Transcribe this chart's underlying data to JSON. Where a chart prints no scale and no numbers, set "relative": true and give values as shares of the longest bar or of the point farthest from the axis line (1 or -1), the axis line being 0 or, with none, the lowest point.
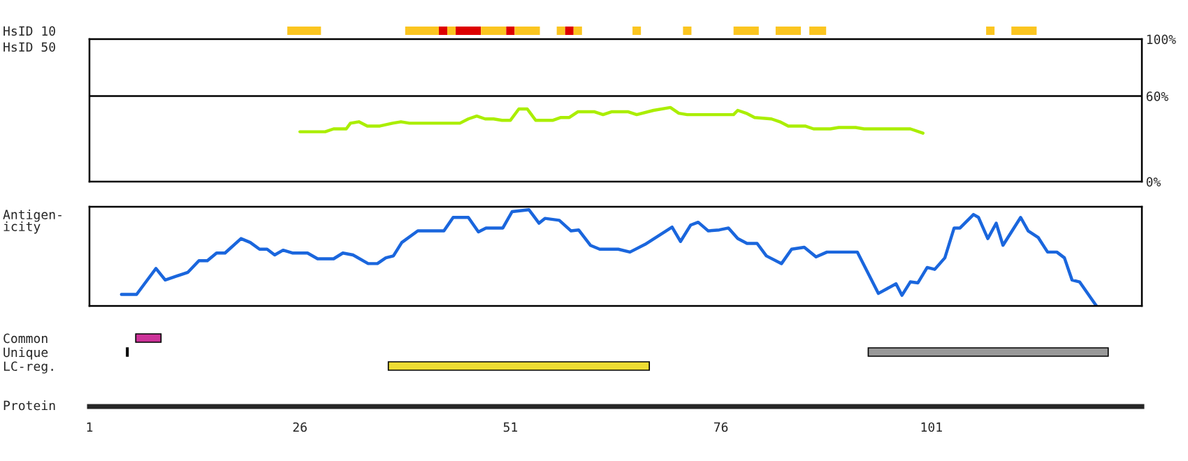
{
  "chart_data": [
    {
      "type": "bar",
      "orientation": "horizontal",
      "categories": [
        "HsID 10"
      ],
      "xlim": [
        1,
        126
      ],
      "tick_labels": "y",
      "series": [
        {
          "color": "#fbc520",
          "base": [
            24.5
          ],
          "values": [
            4
          ]
        },
        {
          "color": "#fbc520",
          "base": [
            38.5
          ],
          "values": [
            4
          ]
        },
        {
          "color": "#dd0000",
          "base": [
            42.5
          ],
          "values": [
            1
          ]
        },
        {
          "color": "#fbc520",
          "base": [
            43.5
          ],
          "values": [
            1
          ]
        },
        {
          "color": "#dd0000",
          "base": [
            44.5
          ],
          "values": [
            3
          ]
        },
        {
          "color": "#fbc520",
          "base": [
            47.5
          ],
          "values": [
            3
          ]
        },
        {
          "color": "#dd0000",
          "base": [
            50.5
          ],
          "values": [
            1
          ]
        },
        {
          "color": "#fbc520",
          "base": [
            51.5
          ],
          "values": [
            3
          ]
        },
        {
          "color": "#fbc520",
          "base": [
            56.5
          ],
          "values": [
            1
          ]
        },
        {
          "color": "#dd0000",
          "base": [
            57.5
          ],
          "values": [
            1
          ]
        },
        {
          "color": "#fbc520",
          "base": [
            58.5
          ],
          "values": [
            1
          ]
        },
        {
          "color": "#fbc520",
          "base": [
            65.5
          ],
          "values": [
            1
          ]
        },
        {
          "color": "#fbc520",
          "base": [
            71.5
          ],
          "values": [
            1
          ]
        },
        {
          "color": "#fbc520",
          "base": [
            77.5
          ],
          "values": [
            3
          ]
        },
        {
          "color": "#fbc520",
          "base": [
            82.5
          ],
          "values": [
            3
          ]
        },
        {
          "color": "#fbc520",
          "base": [
            86.5
          ],
          "values": [
            2
          ]
        },
        {
          "color": "#fbc520",
          "base": [
            107.5
          ],
          "values": [
            1
          ]
        },
        {
          "color": "#fbc520",
          "base": [
            110.5
          ],
          "values": [
            3
          ]
        }
      ]
    },
    {
      "type": "line",
      "ylabel": "HsID 50",
      "x": [
        26,
        29,
        30,
        31.5,
        32,
        33,
        34,
        35.5,
        37,
        38,
        39,
        45,
        46,
        47,
        48,
        49,
        50,
        51,
        52,
        53,
        54,
        56,
        57,
        58,
        59,
        61,
        62,
        63,
        65,
        66,
        68,
        70,
        71,
        72,
        77.5,
        78,
        79,
        80,
        82,
        83,
        84,
        86,
        87,
        89,
        90,
        92,
        93,
        98.5,
        100
      ],
      "xlim": [
        1,
        126
      ],
      "ylim": [
        0,
        100
      ],
      "yticks": [
        {
          "value": 0,
          "label": "0%"
        },
        {
          "value": 60,
          "label": "60%"
        },
        {
          "value": 100,
          "label": "100%"
        }
      ],
      "tick_labels": "y",
      "grid": false,
      "marker": "none",
      "line_style": "solid",
      "ref_lines": [
        {
          "axis": "y",
          "value": 60,
          "color": "#000000"
        }
      ],
      "series": [
        {
          "color": "#aaee00",
          "values": [
            35,
            35,
            37,
            37,
            41,
            42,
            39,
            39,
            41,
            42,
            41,
            41,
            44,
            46,
            44,
            44,
            43,
            43,
            51,
            51,
            43,
            43,
            45,
            45,
            49,
            49,
            47,
            49,
            49,
            47,
            50,
            52,
            48,
            47,
            47,
            50,
            48,
            45,
            44,
            42,
            39,
            39,
            37,
            37,
            38,
            38,
            37,
            37,
            34
          ]
        }
      ]
    },
    {
      "type": "line",
      "ylabel": "Antigen-\nicity",
      "relative": true,
      "xlim": [
        1,
        126
      ],
      "tick_labels": false,
      "grid": false,
      "marker": "none",
      "line_style": "solid",
      "x": [
        4.8,
        6.6,
        8.9,
        10,
        12.7,
        14,
        15,
        16.1,
        17.1,
        19,
        20.1,
        21.2,
        22.1,
        23,
        24,
        25.1,
        26.9,
        28.1,
        30,
        31.1,
        32.3,
        34.1,
        35.2,
        36.2,
        37.1,
        38.1,
        40,
        43.1,
        44.2,
        46,
        47.2,
        48.1,
        50.1,
        51.2,
        53.2,
        54.4,
        55.1,
        56.8,
        58.2,
        59.1,
        60.5,
        61.6,
        63.8,
        65.2,
        67,
        70.2,
        71.2,
        72.4,
        73.3,
        74.5,
        75.8,
        76.9,
        78,
        79.1,
        80.3,
        81.4,
        83.2,
        84.4,
        85.9,
        87.3,
        88.6,
        90.9,
        92.2,
        94.7,
        96.8,
        97.5,
        98.5,
        99.4,
        100.5,
        101.4,
        102.6,
        103.7,
        104.4,
        106,
        106.6,
        107.7,
        108.7,
        109.5,
        111.6,
        112.5,
        113.7,
        114.8,
        115.9,
        116.8,
        117.7,
        118.6,
        120.6
      ],
      "series": [
        {
          "color": "#1a66dd",
          "values": [
            0.12,
            0.12,
            0.39,
            0.27,
            0.35,
            0.47,
            0.47,
            0.55,
            0.55,
            0.7,
            0.66,
            0.59,
            0.59,
            0.53,
            0.58,
            0.55,
            0.55,
            0.49,
            0.49,
            0.55,
            0.53,
            0.44,
            0.44,
            0.5,
            0.52,
            0.66,
            0.78,
            0.78,
            0.92,
            0.92,
            0.77,
            0.81,
            0.81,
            0.98,
            1,
            0.86,
            0.91,
            0.89,
            0.78,
            0.79,
            0.63,
            0.59,
            0.59,
            0.56,
            0.64,
            0.82,
            0.67,
            0.84,
            0.87,
            0.78,
            0.79,
            0.81,
            0.7,
            0.65,
            0.65,
            0.52,
            0.44,
            0.59,
            0.61,
            0.51,
            0.56,
            0.56,
            0.56,
            0.13,
            0.23,
            0.11,
            0.25,
            0.24,
            0.4,
            0.38,
            0.5,
            0.81,
            0.81,
            0.95,
            0.92,
            0.7,
            0.86,
            0.63,
            0.92,
            0.78,
            0.71,
            0.56,
            0.56,
            0.5,
            0.27,
            0.25,
            0
          ]
        }
      ]
    },
    {
      "type": "bar",
      "orientation": "horizontal",
      "categories": [
        "Common",
        "Unique",
        "LC-reg."
      ],
      "xlabel": "Protein",
      "xlim": [
        1,
        126
      ],
      "xticks": [
        1,
        26,
        51,
        76,
        101
      ],
      "series": [
        {
          "colors": [
            "#cc3399",
            "#000000",
            "#eedd33"
          ],
          "base": [
            6.5,
            5.4,
            36.5
          ],
          "values": [
            3,
            0.2,
            31
          ]
        },
        {
          "colors": [
            null,
            "#999999",
            null
          ],
          "base": [
            null,
            93.5,
            null
          ],
          "values": [
            null,
            28.5,
            null
          ]
        }
      ]
    }
  ]
}
